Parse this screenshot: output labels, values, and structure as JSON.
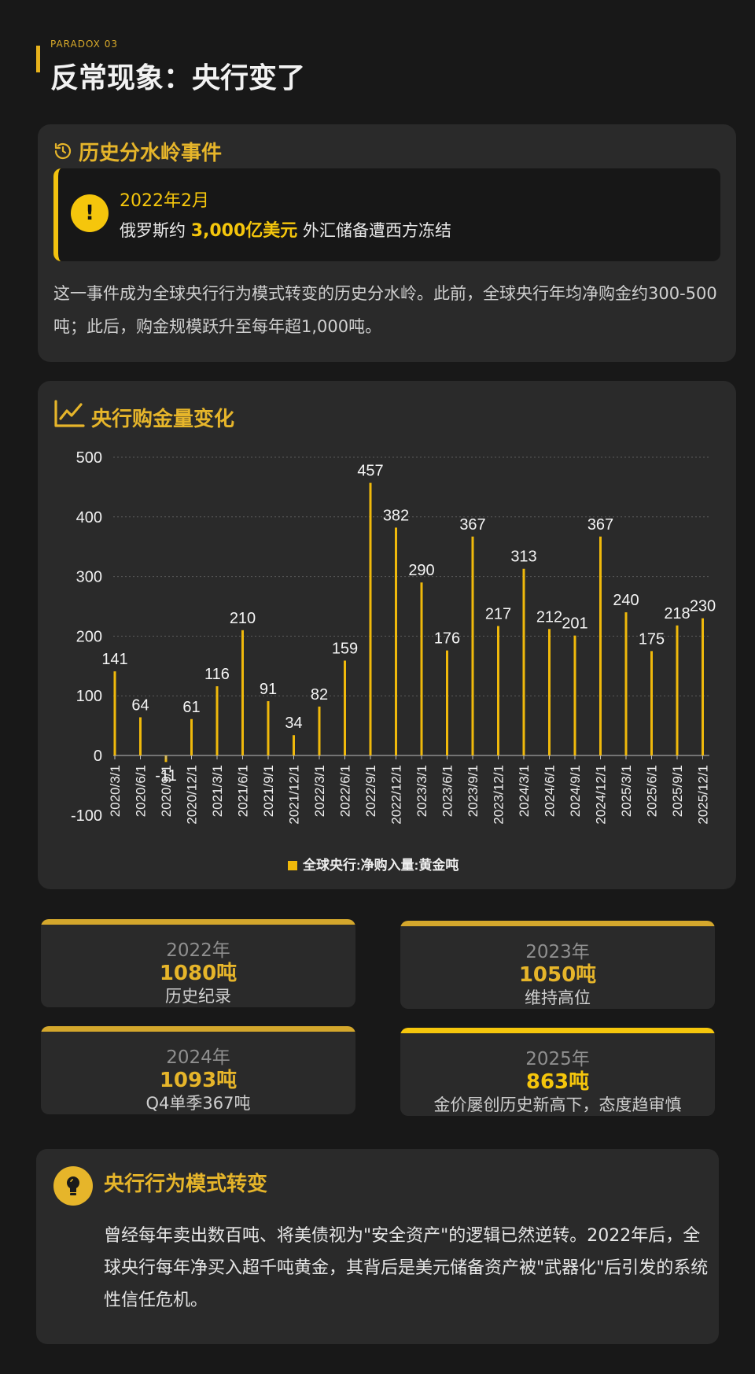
{
  "header": {
    "tag": "PARADOX 03",
    "title": "反常现象：央行变了"
  },
  "event_card": {
    "title": "历史分水岭事件",
    "alert_icon": "!",
    "alert_date": "2022年2月",
    "alert_pre": "俄罗斯约",
    "alert_highlight": "3,000亿美元",
    "alert_post": "外汇储备遭西方冻结",
    "description": "这一事件成为全球央行行为模式转变的历史分水岭。此前，全球央行年均净购金约300-500吨；此后，购金规模跃升至每年超1,000吨。"
  },
  "chart_card": {
    "title": "央行购金量变化"
  },
  "chart_data": {
    "type": "bar",
    "categories": [
      "2020/3/1",
      "2020/6/1",
      "2020/9/1",
      "2020/12/1",
      "2021/3/1",
      "2021/6/1",
      "2021/9/1",
      "2021/12/1",
      "2022/3/1",
      "2022/6/1",
      "2022/9/1",
      "2022/12/1",
      "2023/3/1",
      "2023/6/1",
      "2023/9/1",
      "2023/12/1",
      "2024/3/1",
      "2024/6/1",
      "2024/9/1",
      "2024/12/1",
      "2025/3/1",
      "2025/6/1",
      "2025/9/1",
      "2025/12/1"
    ],
    "series": [
      {
        "name": "全球央行:净购入量:黄金吨",
        "values": [
          141,
          64,
          -11,
          61,
          116,
          210,
          91,
          34,
          82,
          159,
          457,
          382,
          290,
          176,
          367,
          217,
          313,
          212,
          201,
          367,
          240,
          175,
          218,
          230
        ]
      }
    ],
    "value_labels": [
      "141",
      "64",
      "-11",
      "61",
      "116",
      "210",
      "91",
      "34",
      "82",
      "159",
      "457",
      "382",
      "290",
      "176",
      "367",
      "217",
      "313",
      "212",
      "201",
      "367",
      "240",
      "175",
      "218",
      "230"
    ],
    "yticks": [
      "500",
      "400",
      "300",
      "200",
      "100",
      "0",
      "-100"
    ],
    "ylim": [
      -100,
      500
    ],
    "grid": true,
    "legend_position": "bottom-center",
    "bar_color": "#f0b90b"
  },
  "stats": [
    {
      "year": "2022年",
      "value": "1080吨",
      "desc": "历史纪录",
      "bar_color": "#d4a72c"
    },
    {
      "year": "2023年",
      "value": "1050吨",
      "desc": "维持高位",
      "bar_color": "#d4a72c"
    },
    {
      "year": "2024年",
      "value": "1093吨",
      "desc": "Q4单季367吨",
      "bar_color": "#d4a72c"
    },
    {
      "year": "2025年",
      "value": "863吨",
      "desc": "金价屡创历史新高下，态度趋审慎",
      "bar_color": "#f5c60c",
      "value_color": "#f5c60c"
    }
  ],
  "shift_card": {
    "title": "央行行为模式转变",
    "description": "曾经每年卖出数百吨、将美债视为\"安全资产\"的逻辑已然逆转。2022年后，全球央行每年净买入超千吨黄金，其背后是美元储备资产被\"武器化\"后引发的系统性信任危机。"
  },
  "colors": {
    "accent": "#e6b52a",
    "bright": "#f5c60c",
    "background": "#181818",
    "card": "#2a2a2a"
  }
}
